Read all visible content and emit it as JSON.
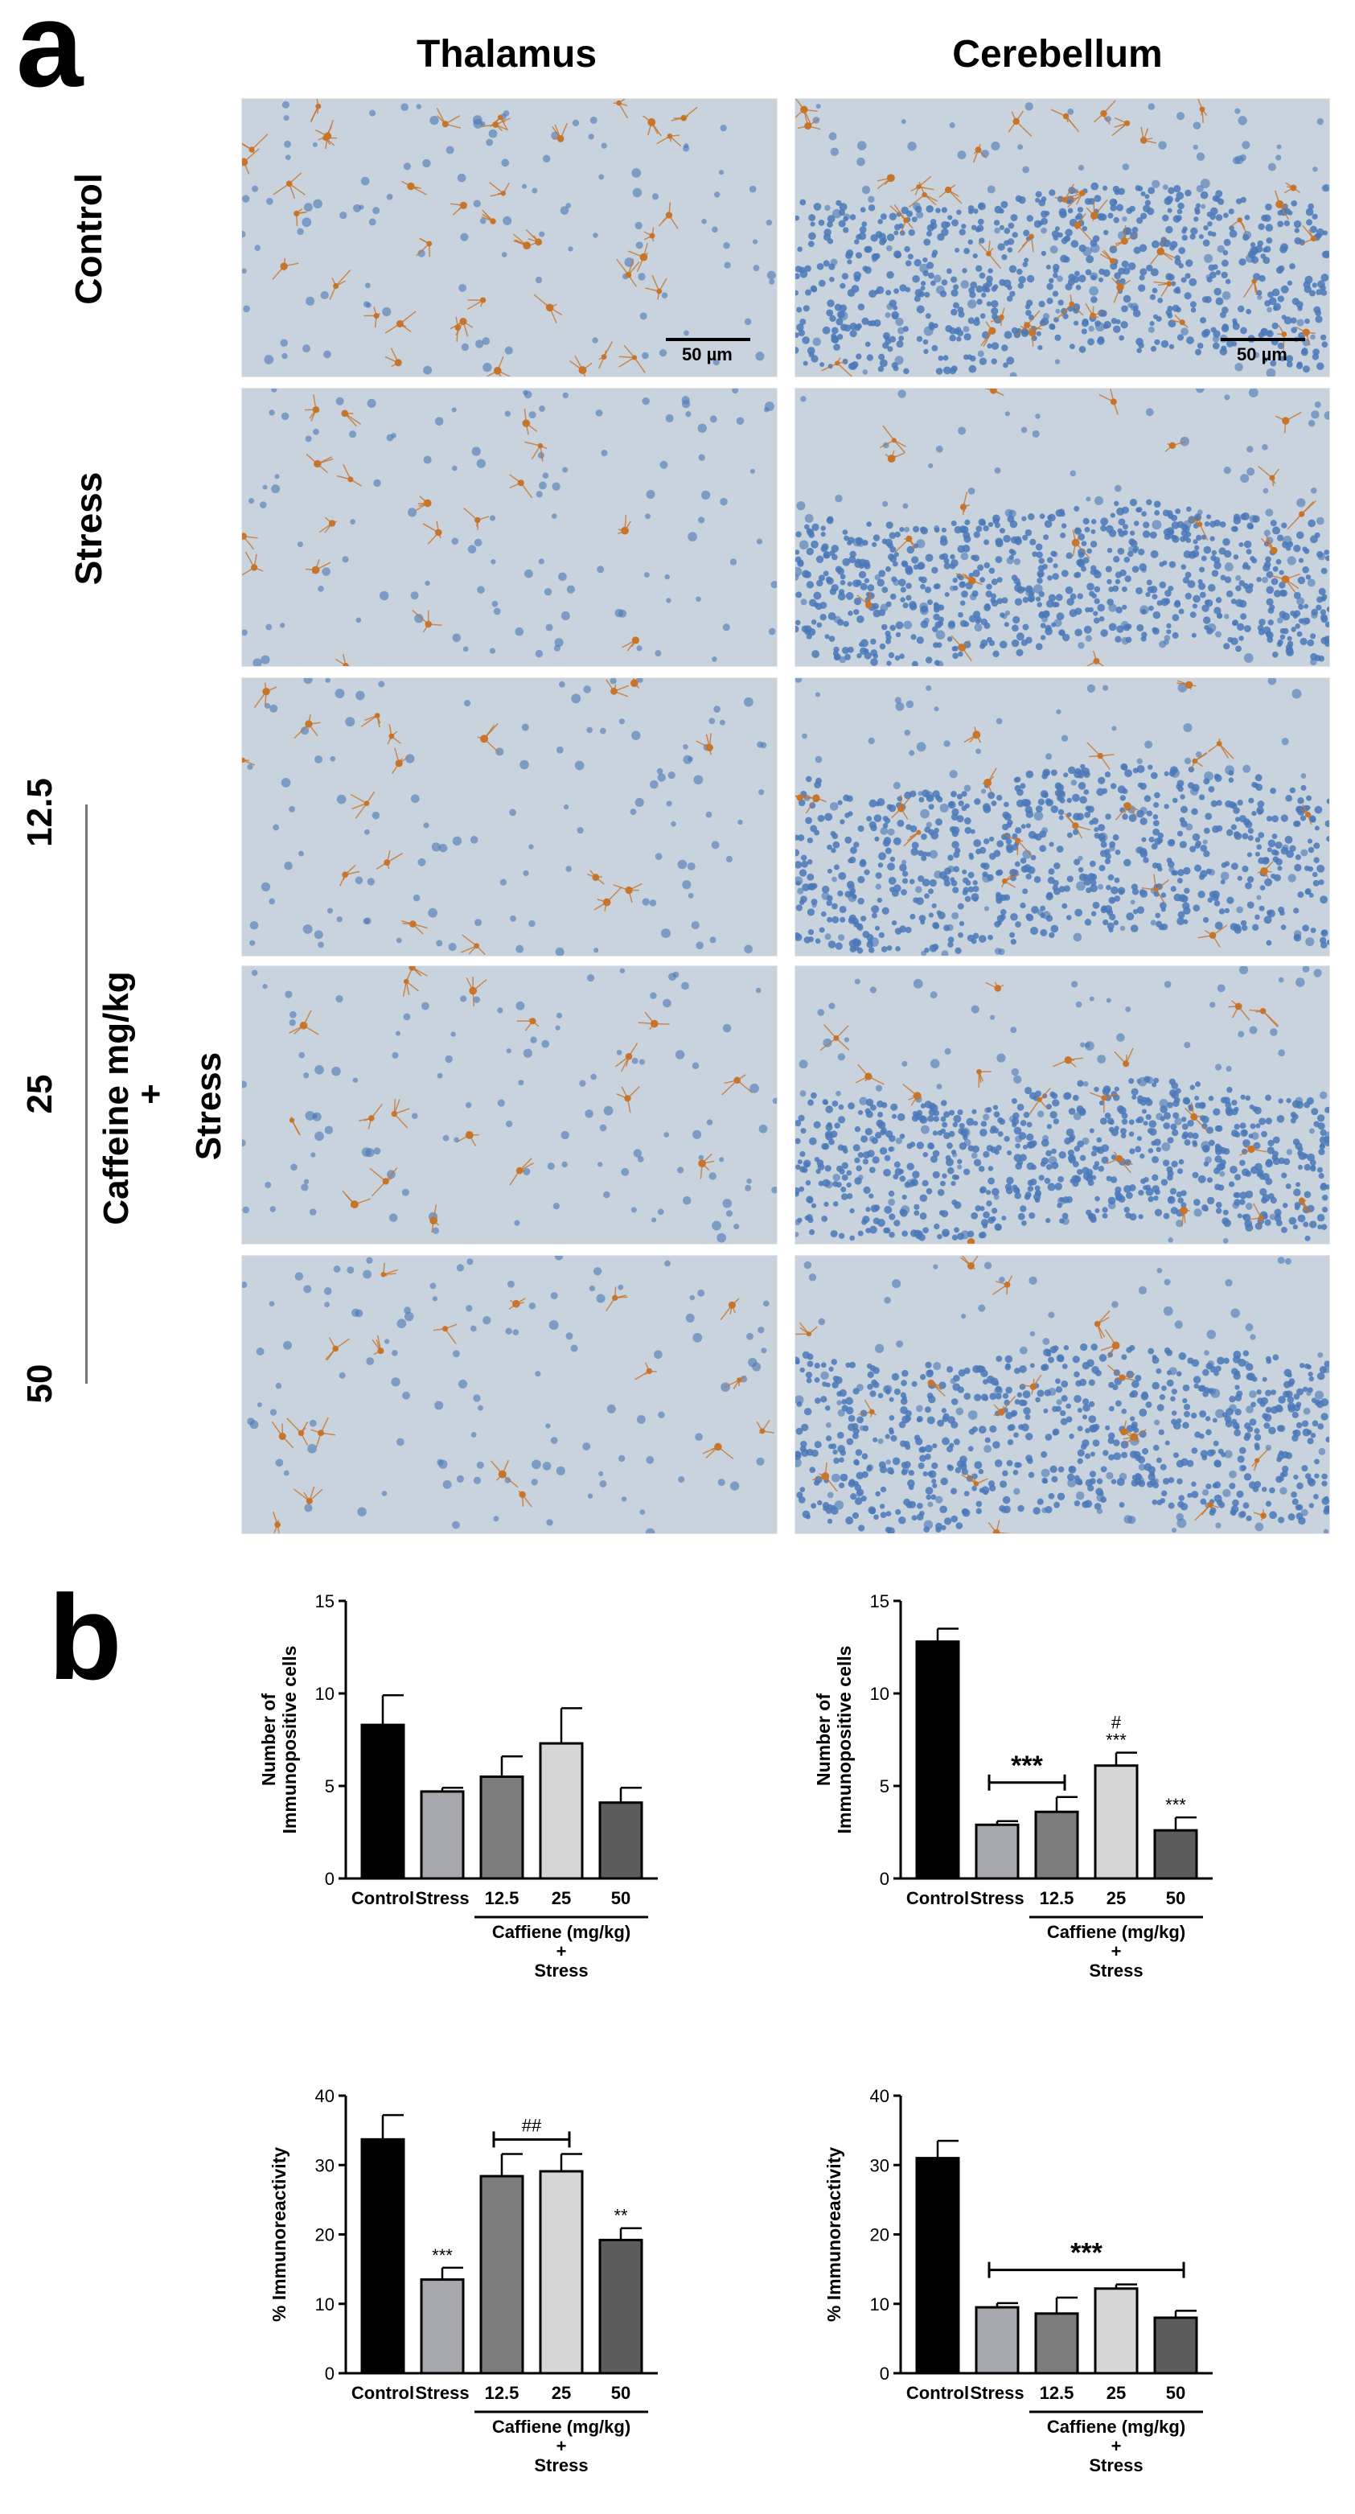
{
  "panel_a": {
    "letter": "a",
    "columns": [
      "Thalamus",
      "Cerebellum"
    ],
    "rows": [
      "Control",
      "Stress",
      "",
      "",
      ""
    ],
    "scale_label": "50 µm",
    "dose_labels": [
      "12.5",
      "25",
      "50"
    ],
    "group_label_line1": "Caffeine mg/kg",
    "group_label_plus": "+",
    "group_label_line2": "Stress"
  },
  "panel_b": {
    "letter": "b"
  },
  "colors": {
    "tissue_bg": "#c9d3dd",
    "nuclei": "#4a78b8",
    "stain": "#c8742a",
    "bar_control": "#000000",
    "bar_stress": "#a7a7ae",
    "bar_12_5": "#7c7c7c",
    "bar_25": "#d6d6d6",
    "bar_50": "#5c5c5c"
  },
  "chart_data": [
    {
      "type": "bar",
      "ylabel": "Number of\nImmunopositive cells",
      "categories": [
        "Control",
        "Stress",
        "12.5",
        "25",
        "50"
      ],
      "values": [
        8.3,
        4.7,
        5.5,
        7.3,
        4.1
      ],
      "errors": [
        1.6,
        0.2,
        1.1,
        1.9,
        0.8
      ],
      "ylim": [
        0,
        15
      ],
      "yticks": [
        0,
        5,
        10,
        15
      ],
      "group_label": [
        "Caffiene (mg/kg)",
        "+",
        "Stress"
      ],
      "annotations": []
    },
    {
      "type": "bar",
      "ylabel": "Number of\nImmunopositive cells",
      "categories": [
        "Control",
        "Stress",
        "12.5",
        "25",
        "50"
      ],
      "values": [
        12.8,
        2.9,
        3.6,
        6.1,
        2.6
      ],
      "errors": [
        0.7,
        0.2,
        0.8,
        0.7,
        0.7
      ],
      "ylim": [
        0,
        15
      ],
      "yticks": [
        0,
        5,
        10,
        15
      ],
      "group_label": [
        "Caffiene (mg/kg)",
        "+",
        "Stress"
      ],
      "annotations": [
        {
          "text": "***",
          "bracket": [
            1,
            2
          ],
          "big": true
        },
        {
          "text": "***",
          "bar": 3
        },
        {
          "text": "#",
          "bar": 3,
          "stack": 1
        },
        {
          "text": "***",
          "bar": 4
        }
      ]
    },
    {
      "type": "bar",
      "ylabel": "% Immunoreactivity",
      "categories": [
        "Control",
        "Stress",
        "12.5",
        "25",
        "50"
      ],
      "values": [
        33.7,
        13.5,
        28.4,
        29.1,
        19.2
      ],
      "errors": [
        3.5,
        1.7,
        3.2,
        2.5,
        1.7
      ],
      "ylim": [
        0,
        40
      ],
      "yticks": [
        0,
        10,
        20,
        30,
        40
      ],
      "group_label": [
        "Caffiene (mg/kg)",
        "+",
        "Stress"
      ],
      "annotations": [
        {
          "text": "***",
          "bar": 1
        },
        {
          "text": "##",
          "bracket": [
            2,
            3
          ],
          "big": false
        },
        {
          "text": "**",
          "bar": 4
        }
      ]
    },
    {
      "type": "bar",
      "ylabel": "% Immunoreactivity",
      "categories": [
        "Control",
        "Stress",
        "12.5",
        "25",
        "50"
      ],
      "values": [
        31.0,
        9.5,
        8.6,
        12.2,
        8.0
      ],
      "errors": [
        2.5,
        0.6,
        2.3,
        0.6,
        1.0
      ],
      "ylim": [
        0,
        40
      ],
      "yticks": [
        0,
        10,
        20,
        30,
        40
      ],
      "group_label": [
        "Caffiene (mg/kg)",
        "+",
        "Stress"
      ],
      "annotations": [
        {
          "text": "***",
          "bracket": [
            1,
            4
          ],
          "big": true
        }
      ]
    }
  ]
}
